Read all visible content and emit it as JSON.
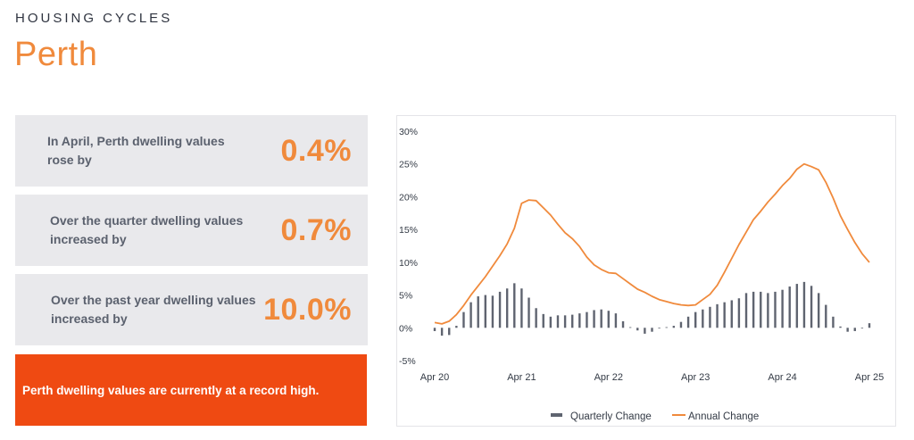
{
  "header": {
    "eyebrow": "HOUSING CYCLES",
    "title": "Perth"
  },
  "cards": [
    {
      "label": "In April, Perth dwelling values rose by",
      "value": "0.4%"
    },
    {
      "label": "Over the quarter dwelling values increased by",
      "value": "0.7%"
    },
    {
      "label": "Over the past year dwelling values increased by",
      "value": "10.0%"
    }
  ],
  "banner": {
    "text": "Perth dwelling values are currently at a record high."
  },
  "colors": {
    "accent": "#f08a3c",
    "banner": "#ef4a12",
    "bars": "#5f6470",
    "card_bg": "#e9e9ec"
  },
  "chart_data": {
    "type": "bar",
    "title": "",
    "xlabel": "",
    "ylabel": "",
    "ylim": [
      -5,
      30
    ],
    "yticks": [
      "30%",
      "25%",
      "20%",
      "15%",
      "10%",
      "5%",
      "0%",
      "-5%"
    ],
    "ytick_values": [
      30,
      25,
      20,
      15,
      10,
      5,
      0,
      -5
    ],
    "xticks": [
      "Apr 20",
      "Apr 21",
      "Apr 22",
      "Apr 23",
      "Apr 24",
      "Apr 25"
    ],
    "legend_position": "bottom",
    "grid": false,
    "months": [
      "Apr 20",
      "May 20",
      "Jun 20",
      "Jul 20",
      "Aug 20",
      "Sep 20",
      "Oct 20",
      "Nov 20",
      "Dec 20",
      "Jan 21",
      "Feb 21",
      "Mar 21",
      "Apr 21",
      "May 21",
      "Jun 21",
      "Jul 21",
      "Aug 21",
      "Sep 21",
      "Oct 21",
      "Nov 21",
      "Dec 21",
      "Jan 22",
      "Feb 22",
      "Mar 22",
      "Apr 22",
      "May 22",
      "Jun 22",
      "Jul 22",
      "Aug 22",
      "Sep 22",
      "Oct 22",
      "Nov 22",
      "Dec 22",
      "Jan 23",
      "Feb 23",
      "Mar 23",
      "Apr 23",
      "May 23",
      "Jun 23",
      "Jul 23",
      "Aug 23",
      "Sep 23",
      "Oct 23",
      "Nov 23",
      "Dec 23",
      "Jan 24",
      "Feb 24",
      "Mar 24",
      "Apr 24",
      "May 24",
      "Jun 24",
      "Jul 24",
      "Aug 24",
      "Sep 24",
      "Oct 24",
      "Nov 24",
      "Dec 24",
      "Jan 25",
      "Feb 25",
      "Mar 25",
      "Apr 25"
    ],
    "series": [
      {
        "name": "Quarterly Change",
        "type": "bar",
        "color": "#5f6470",
        "values": [
          -0.5,
          -1.2,
          -1.1,
          0.3,
          2.4,
          3.9,
          4.8,
          5.0,
          4.9,
          5.5,
          6.0,
          6.8,
          6.0,
          4.6,
          3.0,
          2.1,
          1.7,
          1.9,
          1.9,
          2.0,
          2.2,
          2.4,
          2.7,
          2.8,
          2.6,
          2.2,
          1.0,
          0.1,
          -0.4,
          -0.9,
          -0.6,
          -0.1,
          0.1,
          0.3,
          0.9,
          1.7,
          2.4,
          2.8,
          3.2,
          3.6,
          3.9,
          4.2,
          4.5,
          5.3,
          5.5,
          5.5,
          5.3,
          5.5,
          5.8,
          6.3,
          6.7,
          7.0,
          6.4,
          5.3,
          3.5,
          1.7,
          0.2,
          -0.6,
          -0.5,
          -0.1,
          0.7
        ]
      },
      {
        "name": "Annual Change",
        "type": "line",
        "color": "#f08a3c",
        "values": [
          0.8,
          0.6,
          1.0,
          2.0,
          3.4,
          5.0,
          6.4,
          7.8,
          9.4,
          11.0,
          12.8,
          15.2,
          19.0,
          19.5,
          19.4,
          18.3,
          17.2,
          15.8,
          14.5,
          13.6,
          12.4,
          10.8,
          9.6,
          8.9,
          8.4,
          8.3,
          7.5,
          6.7,
          5.9,
          5.4,
          4.8,
          4.3,
          4.0,
          3.7,
          3.5,
          3.4,
          3.5,
          4.3,
          5.1,
          6.5,
          8.5,
          10.6,
          12.7,
          14.6,
          16.5,
          17.8,
          19.2,
          20.4,
          21.7,
          22.8,
          24.2,
          25.0,
          24.6,
          24.1,
          22.2,
          19.8,
          17.1,
          15.0,
          13.0,
          11.3,
          10.0
        ]
      }
    ]
  }
}
